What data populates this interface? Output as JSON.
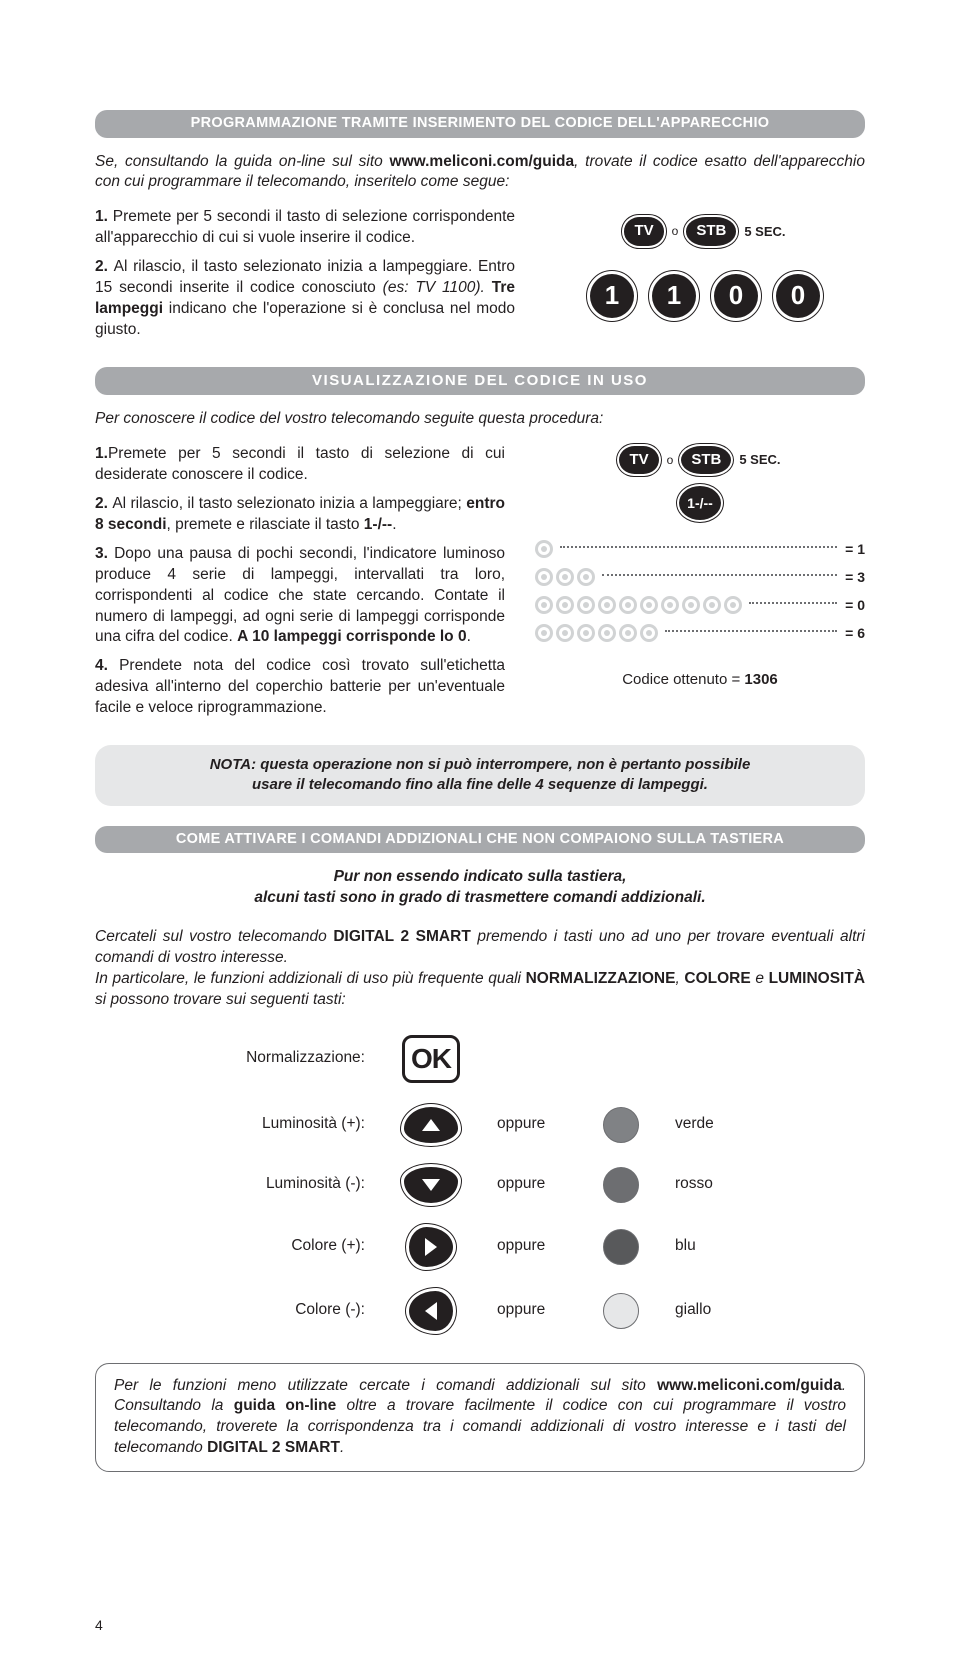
{
  "header1": "PROGRAMMAZIONE TRAMITE INSERIMENTO DEL CODICE DELL'APPARECCHIO",
  "intro1_a": "Se, consultando la guida on-line sul sito ",
  "intro1_b": "www.meliconi.com/guida",
  "intro1_c": ", trovate il codice esatto dell'apparecchio con cui programmare il telecomando, inseritelo come segue:",
  "s1_step1_num": "1. ",
  "s1_step1": "Premete per 5 secondi il tasto di selezione corrispondente all'apparecchio di cui si vuole inserire il codice.",
  "s1_step2_num": "2. ",
  "s1_step2_a": "Al rilascio, il tasto selezionato inizia a lampeggiare. Entro 15 secondi inserite il codice conosciuto ",
  "s1_step2_b": "(es: TV 1100). ",
  "s1_step2_c": "Tre lampeggi",
  "s1_step2_d": " indicano che l'operazione si è conclusa nel modo giusto.",
  "btn_tv": "TV",
  "btn_stb": "STB",
  "label_o": "o",
  "label_5sec": "5 SEC.",
  "digits": [
    "1",
    "1",
    "0",
    "0"
  ],
  "header2": "VISUALIZZAZIONE DEL CODICE IN USO",
  "intro2": "Per conoscere il codice del vostro telecomando seguite questa procedura:",
  "s2_step1_num": "1.",
  "s2_step1": "Premete per 5 secondi il tasto di selezione di cui desiderate conoscere il codice.",
  "s2_step2_num": "2. ",
  "s2_step2_a": "Al rilascio, il tasto selezionato inizia a lampeggiare; ",
  "s2_step2_b": "entro 8 secondi",
  "s2_step2_c": ", premete e rilasciate il tasto ",
  "s2_step2_d": "1-/--",
  "s2_step2_e": ".",
  "s2_step3_num": "3. ",
  "s2_step3_a": "Dopo una pausa di pochi secondi, l'indicatore luminoso produce 4 serie di lampeggi, intervallati tra loro, corrispondenti al codice che state cercando. Contate il numero di lampeggi, ad ogni serie di lampeggi corrisponde una cifra del codice. ",
  "s2_step3_b": "A 10 lampeggi corrisponde lo 0",
  "s2_step3_c": ".",
  "s2_step4_num": "4. ",
  "s2_step4": "Prendete nota del codice così trovato sull'etichetta adesiva all'interno del coperchio batterie per un'eventuale facile e veloce riprogrammazione.",
  "btn_dash": "1-/--",
  "blinks": [
    {
      "count": 1,
      "label": "= 1"
    },
    {
      "count": 3,
      "label": "= 3"
    },
    {
      "count": 10,
      "label": "= 0"
    },
    {
      "count": 6,
      "label": "= 6"
    }
  ],
  "code_obtained_a": "Codice ottenuto = ",
  "code_obtained_b": "1306",
  "note_l1": "NOTA: questa operazione non si può interrompere, non è pertanto possibile",
  "note_l2": "usare il telecomando fino alla fine delle 4 sequenze di lampeggi.",
  "header3": "COME ATTIVARE I COMANDI ADDIZIONALI CHE NON COMPAIONO SULLA TASTIERA",
  "sub3_l1": "Pur non essendo indicato sulla tastiera,",
  "sub3_l2": "alcuni tasti sono in grado di trasmettere comandi addizionali.",
  "para3_a": "Cercateli sul vostro telecomando ",
  "para3_b": "DIGITAL 2 SMART",
  "para3_c": " premendo i tasti uno ad uno per trovare eventuali altri comandi di vostro interesse.",
  "para3_d": "In particolare, le funzioni addizionali di uso più frequente quali ",
  "para3_e": "NORMALIZZAZIONE",
  "para3_f": ", ",
  "para3_g": "COLORE",
  "para3_h": " e ",
  "para3_i": "LUMINOSITÀ",
  "para3_j": " si possono trovare sui seguenti tasti:",
  "func": {
    "normal": "Normalizzazione:",
    "ok": "OK",
    "lumplus": "Luminosità (+):",
    "lumminus": "Luminosità (-):",
    "colplus": "Colore (+):",
    "colminus": "Colore (-):",
    "oppure": "oppure",
    "verde": "verde",
    "rosso": "rosso",
    "blu": "blu",
    "giallo": "giallo"
  },
  "colors": {
    "verde": "#808285",
    "rosso": "#6d6e71",
    "blu": "#58595b",
    "giallo": "#e6e7e8"
  },
  "footer_a": "Per le funzioni meno utilizzate cercate i comandi addizionali sul sito ",
  "footer_b": "www.meliconi.com/guida",
  "footer_c": ". Consultando la ",
  "footer_d": "guida on-line",
  "footer_e": " oltre a trovare facilmente il codice con cui programmare il vostro telecomando, troverete la corrispondenza tra i comandi addizionali di vostro interesse e i tasti del telecomando ",
  "footer_f": "DIGITAL 2 SMART",
  "footer_g": ".",
  "page_num": "4"
}
